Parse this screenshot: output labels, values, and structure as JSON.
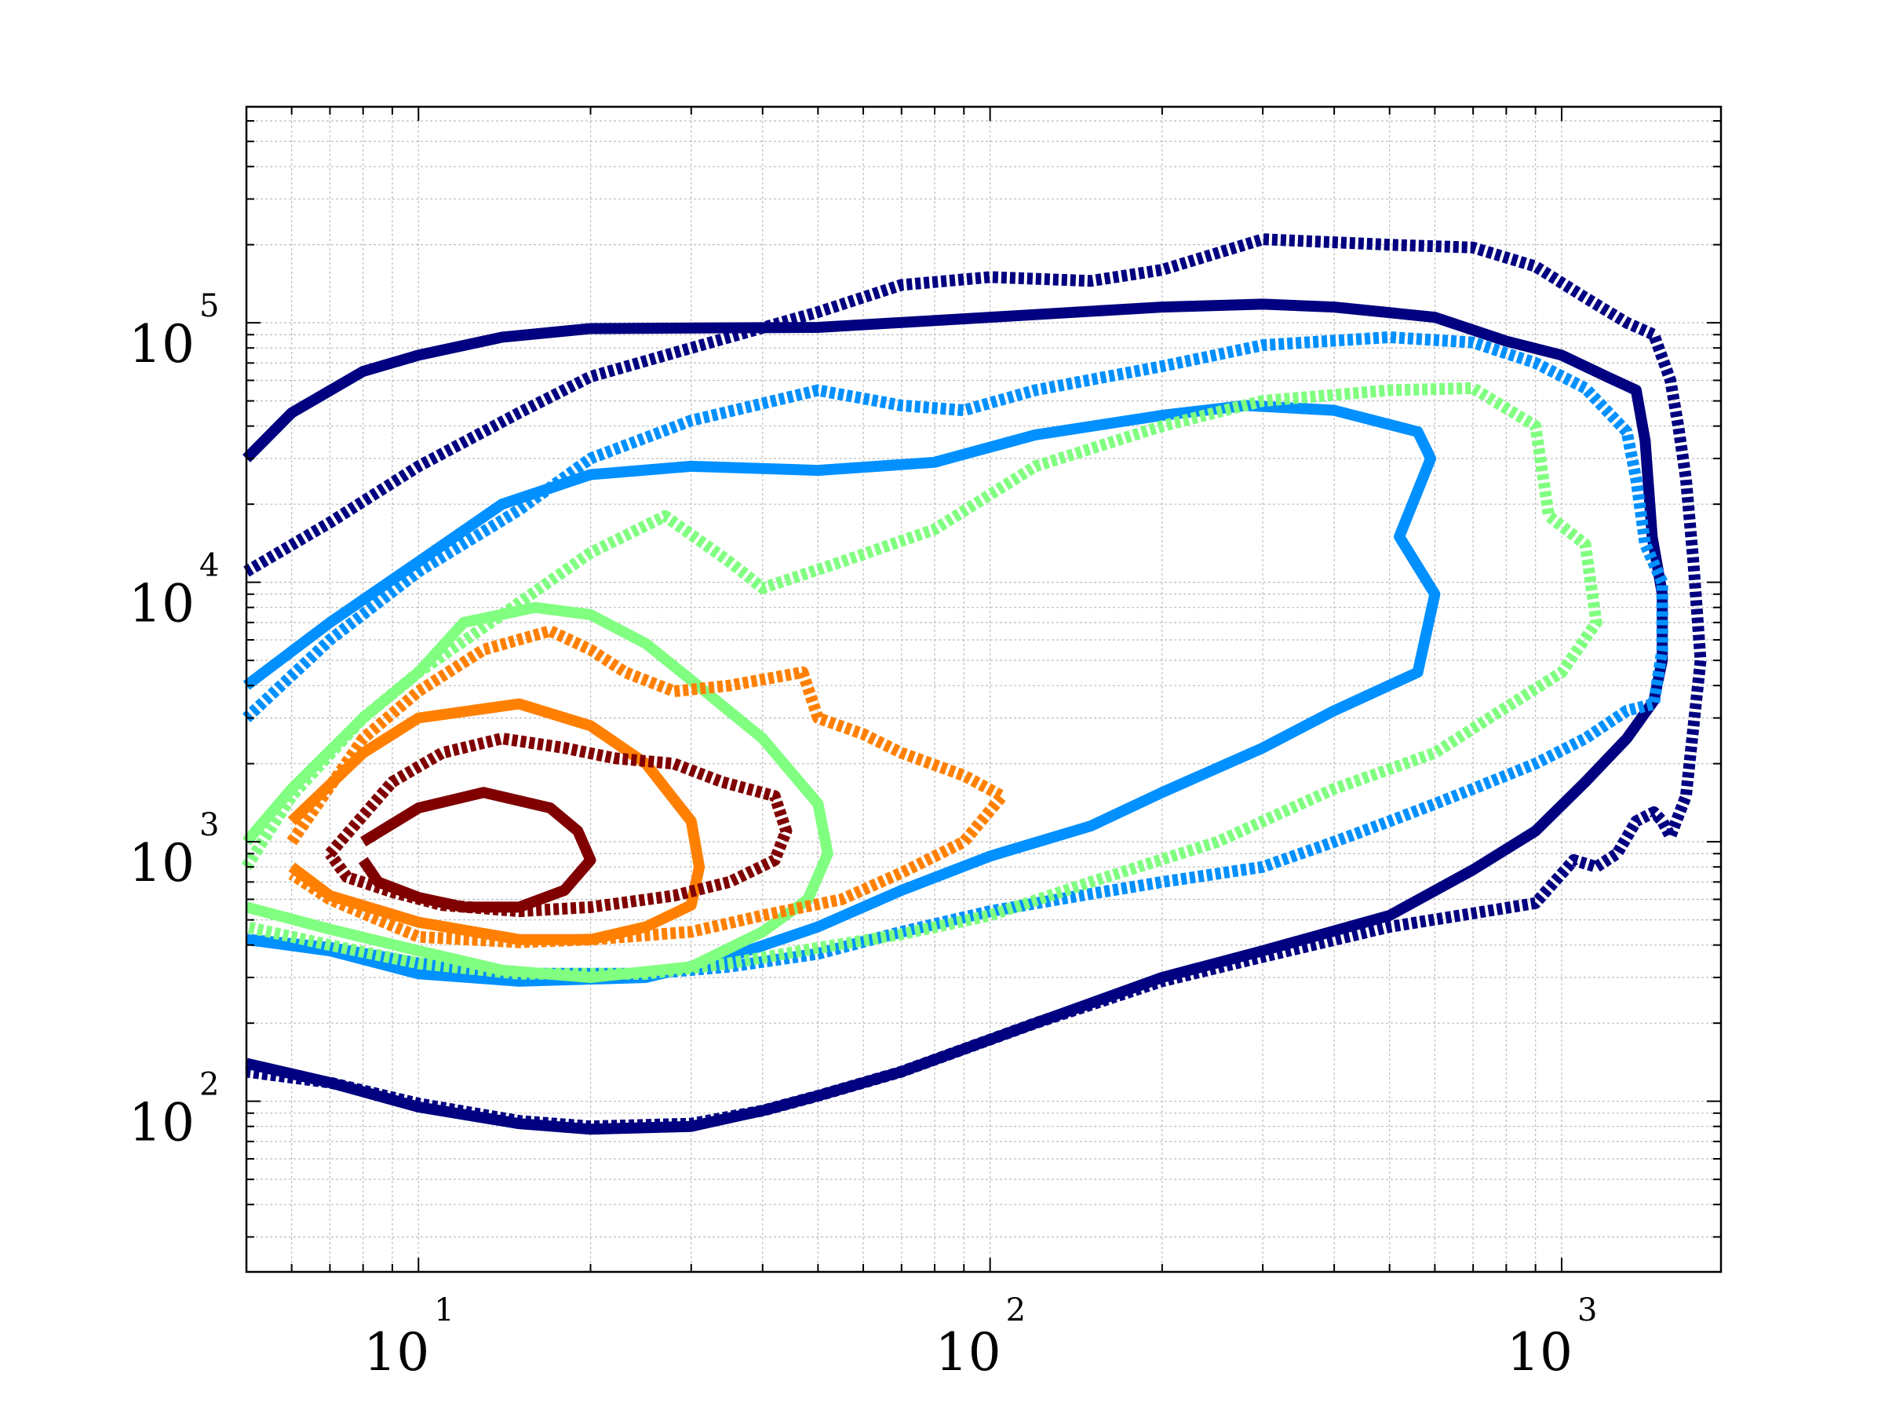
{
  "chart_data": {
    "type": "contour",
    "title": "",
    "xlabel": "",
    "ylabel": "",
    "xscale": "log",
    "yscale": "log",
    "xlim": [
      5,
      1900
    ],
    "ylim": [
      22,
      680000
    ],
    "grid": true,
    "x_ticks": [
      {
        "base": "10",
        "exp": "1",
        "value": 10
      },
      {
        "base": "10",
        "exp": "2",
        "value": 100
      },
      {
        "base": "10",
        "exp": "3",
        "value": 1000
      }
    ],
    "y_ticks": [
      {
        "base": "10",
        "exp": "2",
        "value": 100
      },
      {
        "base": "10",
        "exp": "3",
        "value": 1000
      },
      {
        "base": "10",
        "exp": "4",
        "value": 10000
      },
      {
        "base": "10",
        "exp": "5",
        "value": 100000
      }
    ],
    "series": [
      {
        "color": "#000080",
        "style": "solid",
        "points": [
          [
            5,
            30000
          ],
          [
            6,
            45000
          ],
          [
            8,
            65000
          ],
          [
            10,
            75000
          ],
          [
            14,
            88000
          ],
          [
            20,
            95000
          ],
          [
            50,
            96000
          ],
          [
            100,
            105000
          ],
          [
            200,
            115000
          ],
          [
            300,
            118000
          ],
          [
            400,
            115000
          ],
          [
            600,
            105000
          ],
          [
            800,
            85000
          ],
          [
            1000,
            75000
          ],
          [
            1200,
            62000
          ],
          [
            1350,
            55000
          ],
          [
            1400,
            35000
          ],
          [
            1440,
            15000
          ],
          [
            1500,
            9000
          ],
          [
            1500,
            5000
          ],
          [
            1450,
            3500
          ],
          [
            1300,
            2500
          ],
          [
            1100,
            1700
          ],
          [
            900,
            1100
          ],
          [
            700,
            780
          ],
          [
            500,
            520
          ],
          [
            300,
            380
          ],
          [
            200,
            300
          ],
          [
            120,
            200
          ],
          [
            70,
            130
          ],
          [
            50,
            105
          ],
          [
            40,
            92
          ],
          [
            30,
            80
          ],
          [
            20,
            78
          ],
          [
            15,
            82
          ],
          [
            10,
            95
          ],
          [
            7,
            118
          ],
          [
            5,
            140
          ]
        ]
      },
      {
        "color": "#000080",
        "style": "dashed",
        "points": [
          [
            5,
            11000
          ],
          [
            7,
            17000
          ],
          [
            10,
            28000
          ],
          [
            15,
            45000
          ],
          [
            20,
            62000
          ],
          [
            30,
            80000
          ],
          [
            50,
            110000
          ],
          [
            70,
            140000
          ],
          [
            100,
            150000
          ],
          [
            150,
            145000
          ],
          [
            200,
            160000
          ],
          [
            300,
            210000
          ],
          [
            500,
            200000
          ],
          [
            700,
            195000
          ],
          [
            900,
            165000
          ],
          [
            1100,
            125000
          ],
          [
            1300,
            100000
          ],
          [
            1450,
            90000
          ],
          [
            1550,
            60000
          ],
          [
            1600,
            40000
          ],
          [
            1650,
            25000
          ],
          [
            1700,
            12000
          ],
          [
            1750,
            5000
          ],
          [
            1650,
            1500
          ],
          [
            1550,
            1050
          ],
          [
            1500,
            1200
          ],
          [
            1450,
            1300
          ],
          [
            1350,
            1200
          ],
          [
            1250,
            900
          ],
          [
            1150,
            800
          ],
          [
            1050,
            850
          ],
          [
            900,
            580
          ],
          [
            700,
            530
          ],
          [
            500,
            470
          ],
          [
            300,
            360
          ],
          [
            200,
            290
          ],
          [
            120,
            200
          ],
          [
            70,
            130
          ],
          [
            50,
            105
          ],
          [
            40,
            92
          ],
          [
            30,
            82
          ],
          [
            20,
            80
          ],
          [
            15,
            84
          ],
          [
            10,
            98
          ],
          [
            7,
            118
          ],
          [
            5,
            130
          ]
        ]
      },
      {
        "color": "#0090ff",
        "style": "solid",
        "points": [
          [
            5,
            4000
          ],
          [
            7,
            7000
          ],
          [
            10,
            12000
          ],
          [
            14,
            20000
          ],
          [
            20,
            26000
          ],
          [
            30,
            28000
          ],
          [
            50,
            27000
          ],
          [
            80,
            29000
          ],
          [
            120,
            37000
          ],
          [
            200,
            44000
          ],
          [
            280,
            48000
          ],
          [
            400,
            46000
          ],
          [
            560,
            38000
          ],
          [
            590,
            30000
          ],
          [
            520,
            15000
          ],
          [
            600,
            9000
          ],
          [
            560,
            4500
          ],
          [
            400,
            3200
          ],
          [
            300,
            2300
          ],
          [
            200,
            1550
          ],
          [
            150,
            1150
          ],
          [
            100,
            880
          ],
          [
            70,
            650
          ],
          [
            50,
            470
          ],
          [
            35,
            360
          ],
          [
            25,
            300
          ],
          [
            15,
            290
          ],
          [
            10,
            310
          ],
          [
            7,
            380
          ],
          [
            5,
            420
          ]
        ]
      },
      {
        "color": "#0090ff",
        "style": "dashed",
        "points": [
          [
            5,
            3000
          ],
          [
            7,
            6000
          ],
          [
            10,
            11000
          ],
          [
            15,
            19000
          ],
          [
            20,
            30000
          ],
          [
            30,
            42000
          ],
          [
            50,
            55000
          ],
          [
            70,
            48000
          ],
          [
            90,
            46000
          ],
          [
            120,
            55000
          ],
          [
            200,
            68000
          ],
          [
            300,
            82000
          ],
          [
            500,
            88000
          ],
          [
            700,
            84000
          ],
          [
            900,
            70000
          ],
          [
            1100,
            56000
          ],
          [
            1300,
            38000
          ],
          [
            1350,
            25000
          ],
          [
            1400,
            14000
          ],
          [
            1500,
            10000
          ],
          [
            1500,
            5500
          ],
          [
            1450,
            3400
          ],
          [
            1300,
            3200
          ],
          [
            1100,
            2500
          ],
          [
            900,
            2000
          ],
          [
            700,
            1600
          ],
          [
            600,
            1400
          ],
          [
            500,
            1200
          ],
          [
            400,
            1000
          ],
          [
            300,
            800
          ],
          [
            200,
            700
          ],
          [
            150,
            630
          ],
          [
            100,
            540
          ],
          [
            70,
            450
          ],
          [
            50,
            370
          ],
          [
            35,
            330
          ],
          [
            25,
            310
          ],
          [
            15,
            310
          ],
          [
            10,
            340
          ],
          [
            7,
            390
          ],
          [
            5,
            420
          ]
        ]
      },
      {
        "color": "#80ff80",
        "style": "solid",
        "points": [
          [
            5,
            1000
          ],
          [
            6,
            1600
          ],
          [
            8,
            3000
          ],
          [
            10,
            4500
          ],
          [
            12,
            7000
          ],
          [
            16,
            8000
          ],
          [
            20,
            7500
          ],
          [
            25,
            5800
          ],
          [
            30,
            4200
          ],
          [
            40,
            2500
          ],
          [
            50,
            1400
          ],
          [
            52,
            900
          ],
          [
            48,
            600
          ],
          [
            40,
            450
          ],
          [
            30,
            330
          ],
          [
            20,
            300
          ],
          [
            14,
            320
          ],
          [
            10,
            380
          ],
          [
            7,
            460
          ],
          [
            5,
            560
          ]
        ]
      },
      {
        "color": "#80ff80",
        "style": "dashed",
        "points": [
          [
            5,
            800
          ],
          [
            6,
            1500
          ],
          [
            8,
            3000
          ],
          [
            10,
            4500
          ],
          [
            14,
            7500
          ],
          [
            20,
            13000
          ],
          [
            27,
            18000
          ],
          [
            35,
            12000
          ],
          [
            40,
            9500
          ],
          [
            55,
            12000
          ],
          [
            80,
            16000
          ],
          [
            120,
            28000
          ],
          [
            200,
            40000
          ],
          [
            300,
            50000
          ],
          [
            500,
            55000
          ],
          [
            700,
            56000
          ],
          [
            900,
            40000
          ],
          [
            950,
            18000
          ],
          [
            1100,
            14000
          ],
          [
            1150,
            7000
          ],
          [
            1000,
            4500
          ],
          [
            800,
            3300
          ],
          [
            600,
            2200
          ],
          [
            400,
            1600
          ],
          [
            250,
            1000
          ],
          [
            150,
            700
          ],
          [
            100,
            520
          ],
          [
            70,
            440
          ],
          [
            50,
            390
          ],
          [
            35,
            340
          ],
          [
            25,
            310
          ],
          [
            15,
            310
          ],
          [
            10,
            340
          ],
          [
            7,
            400
          ],
          [
            5,
            470
          ]
        ]
      },
      {
        "color": "#ff8000",
        "style": "solid",
        "points": [
          [
            6,
            1200
          ],
          [
            8,
            2200
          ],
          [
            10,
            3000
          ],
          [
            15,
            3400
          ],
          [
            20,
            2800
          ],
          [
            25,
            2000
          ],
          [
            30,
            1200
          ],
          [
            31,
            800
          ],
          [
            30,
            570
          ],
          [
            25,
            470
          ],
          [
            20,
            420
          ],
          [
            15,
            420
          ],
          [
            10,
            490
          ],
          [
            7,
            620
          ],
          [
            6,
            800
          ]
        ]
      },
      {
        "color": "#ff8000",
        "style": "dashed",
        "points": [
          [
            6,
            1000
          ],
          [
            8,
            2500
          ],
          [
            10,
            3800
          ],
          [
            13,
            5500
          ],
          [
            17,
            6500
          ],
          [
            20,
            5500
          ],
          [
            23,
            4500
          ],
          [
            28,
            3800
          ],
          [
            35,
            4000
          ],
          [
            47,
            4500
          ],
          [
            50,
            3000
          ],
          [
            60,
            2600
          ],
          [
            70,
            2200
          ],
          [
            90,
            1800
          ],
          [
            105,
            1500
          ],
          [
            90,
            1000
          ],
          [
            70,
            760
          ],
          [
            55,
            600
          ],
          [
            40,
            520
          ],
          [
            30,
            450
          ],
          [
            20,
            420
          ],
          [
            15,
            410
          ],
          [
            10,
            430
          ],
          [
            7,
            600
          ],
          [
            6,
            750
          ]
        ]
      },
      {
        "color": "#800000",
        "style": "solid",
        "points": [
          [
            8,
            1000
          ],
          [
            10,
            1350
          ],
          [
            13,
            1550
          ],
          [
            17,
            1350
          ],
          [
            19,
            1100
          ],
          [
            20,
            850
          ],
          [
            18,
            650
          ],
          [
            15,
            560
          ],
          [
            12,
            560
          ],
          [
            10,
            610
          ],
          [
            8.5,
            700
          ],
          [
            8,
            850
          ]
        ]
      },
      {
        "color": "#800000",
        "style": "dashed",
        "points": [
          [
            7,
            900
          ],
          [
            9,
            1700
          ],
          [
            11,
            2200
          ],
          [
            14,
            2500
          ],
          [
            18,
            2300
          ],
          [
            22,
            2100
          ],
          [
            28,
            2000
          ],
          [
            34,
            1700
          ],
          [
            42,
            1500
          ],
          [
            44,
            1100
          ],
          [
            42,
            850
          ],
          [
            35,
            700
          ],
          [
            28,
            620
          ],
          [
            20,
            560
          ],
          [
            15,
            540
          ],
          [
            11,
            570
          ],
          [
            9,
            640
          ],
          [
            7.5,
            730
          ],
          [
            7,
            900
          ]
        ]
      }
    ]
  }
}
